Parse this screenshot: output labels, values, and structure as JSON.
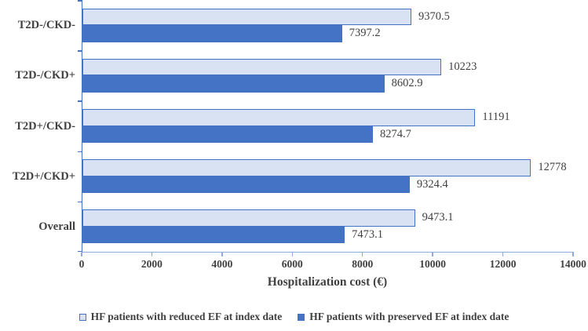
{
  "chart_data": {
    "type": "bar",
    "orientation": "horizontal",
    "title": "",
    "xlabel": "Hospitalization cost (€)",
    "ylabel": "",
    "xlim": [
      0,
      14000
    ],
    "xticks": [
      0,
      2000,
      4000,
      6000,
      8000,
      10000,
      12000,
      14000
    ],
    "grid": false,
    "legend_position": "bottom",
    "categories": [
      "T2D-/CKD-",
      "T2D-/CKD+",
      "T2D+/CKD-",
      "T2D+/CKD+",
      "Overall"
    ],
    "series": [
      {
        "name": "HF patients with reduced EF at index date",
        "values": [
          9370.5,
          10223,
          11191,
          12778,
          9473.1
        ],
        "labels": [
          "9370.5",
          "10223",
          "11191",
          "12778",
          "9473.1"
        ],
        "fill": "#D9E2F3",
        "border": "#4472C4"
      },
      {
        "name": "HF patients with preserved EF at index date",
        "values": [
          7397.2,
          8602.9,
          8274.7,
          9324.4,
          7473.1
        ],
        "labels": [
          "7397.2",
          "8602.9",
          "8274.7",
          "9324.4",
          "7473.1"
        ],
        "fill": "#4472C4",
        "border": "#4472C4"
      }
    ],
    "colors": {
      "x_axis_line": "#8FAADC",
      "y_axis_line": "#4472C4",
      "text": "#404040"
    }
  }
}
